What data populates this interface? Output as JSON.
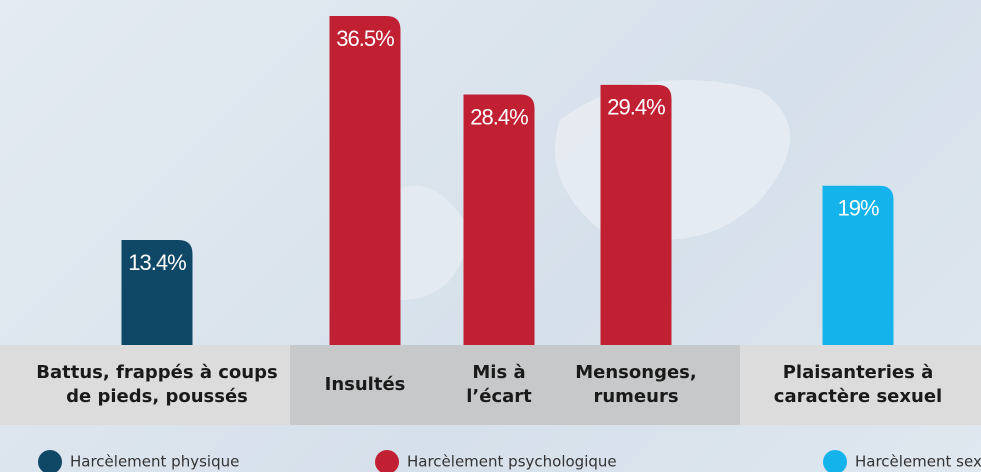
{
  "chart_data": {
    "type": "bar",
    "categories": [
      "Battus, frappés à coups de pieds, poussés",
      "Insultés",
      "Mis à l’écart",
      "Mensonges, rumeurs",
      "Plaisanteries à caractère sexuel"
    ],
    "values": [
      13.4,
      36.5,
      28.4,
      29.4,
      19
    ],
    "value_labels": [
      "13.4%",
      "36.5%",
      "28.4%",
      "29.4%",
      "19%"
    ],
    "colors": [
      "#0f4767",
      "#c12033",
      "#c12033",
      "#c12033",
      "#14b3eb"
    ],
    "ylim": [
      0,
      38
    ],
    "legend": [
      {
        "name": "Harcèlement physique",
        "color": "#0f4767"
      },
      {
        "name": "Harcèlement psychologique",
        "color": "#c12033"
      },
      {
        "name": "Harcèlement sexuel",
        "color": "#14b3eb"
      }
    ]
  }
}
